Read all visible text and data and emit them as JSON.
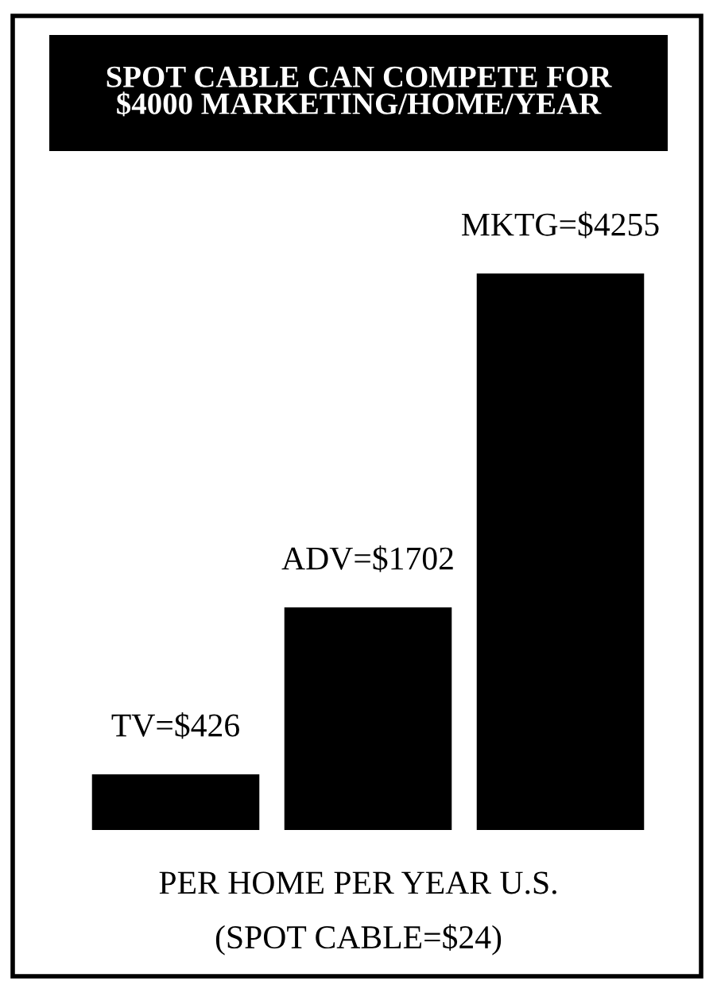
{
  "chart_data": {
    "type": "bar",
    "title": "SPOT CABLE CAN COMPETE FOR\n$4000 MARKETING/HOME/YEAR",
    "categories": [
      null,
      null,
      null
    ],
    "values": [
      426,
      1702,
      4255
    ],
    "value_labels": [
      "TV=$426",
      "ADV=$1702",
      "MKTG=$4255"
    ],
    "color": "#000000",
    "xlabel": "PER HOME PER YEAR U.S.",
    "annotations": [
      "(SPOT CABLE=$24)"
    ],
    "grid": false,
    "legend": false
  }
}
